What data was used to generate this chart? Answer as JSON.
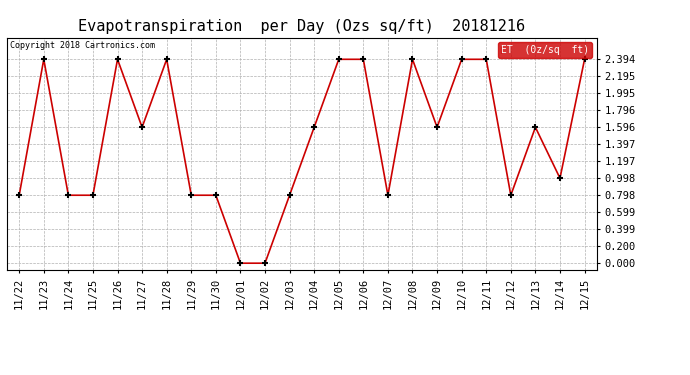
{
  "title": "Evapotranspiration  per Day (Ozs sq/ft)  20181216",
  "copyright": "Copyright 2018 Cartronics.com",
  "legend_label": "ET  (0z/sq  ft)",
  "x_labels": [
    "11/22",
    "11/23",
    "11/24",
    "11/25",
    "11/26",
    "11/27",
    "11/28",
    "11/29",
    "11/30",
    "12/01",
    "12/02",
    "12/03",
    "12/04",
    "12/05",
    "12/06",
    "12/07",
    "12/08",
    "12/09",
    "12/10",
    "12/11",
    "12/12",
    "12/13",
    "12/14",
    "12/15"
  ],
  "y_values": [
    0.798,
    2.394,
    0.798,
    0.798,
    2.394,
    1.596,
    2.394,
    0.798,
    0.798,
    0.0,
    0.0,
    0.798,
    1.596,
    2.394,
    2.394,
    0.798,
    2.394,
    1.596,
    2.394,
    2.394,
    0.798,
    1.596,
    0.998,
    2.394
  ],
  "y_ticks": [
    0.0,
    0.2,
    0.399,
    0.599,
    0.798,
    0.998,
    1.197,
    1.397,
    1.596,
    1.796,
    1.995,
    2.195,
    2.394
  ],
  "line_color": "#cc0000",
  "marker_color": "#000000",
  "bg_color": "#ffffff",
  "grid_color": "#b0b0b0",
  "legend_bg": "#cc0000",
  "legend_text_color": "#ffffff",
  "title_fontsize": 11,
  "tick_fontsize": 7.5,
  "ylim": [
    -0.08,
    2.65
  ]
}
